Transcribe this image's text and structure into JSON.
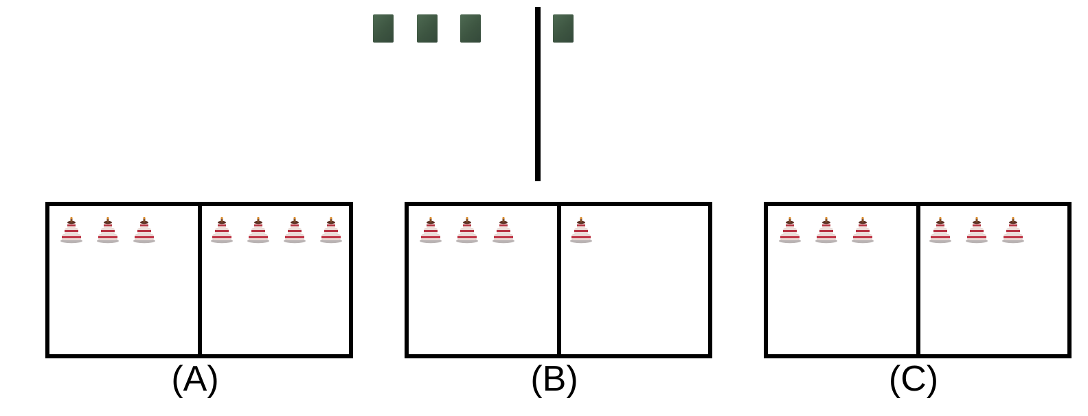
{
  "top_books": {
    "left_count": 3,
    "right_count": 1,
    "color": "#3d5541"
  },
  "options": [
    {
      "label": "(A)",
      "left_cakes": 3,
      "right_cakes": 4
    },
    {
      "label": "(B)",
      "left_cakes": 3,
      "right_cakes": 1
    },
    {
      "label": "(C)",
      "left_cakes": 3,
      "right_cakes": 3
    }
  ],
  "icons": {
    "book": "book-icon",
    "cake": "cake-icon"
  }
}
